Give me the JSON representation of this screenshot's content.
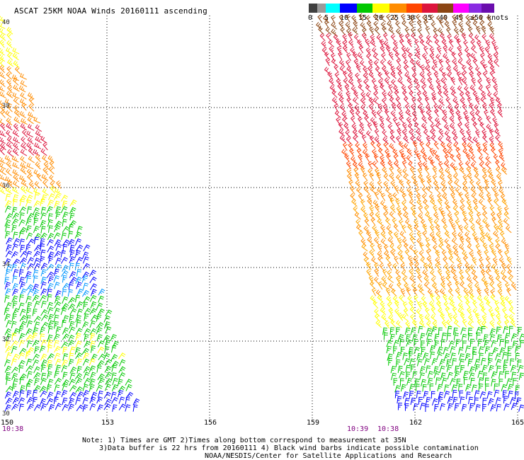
{
  "title": "ASCAT 25KM NOAA Winds 20160111 ascending",
  "legend": {
    "colors": [
      "#404040",
      "#9a9a9a",
      "#00ffff",
      "#0000ff",
      "#00c800",
      "#ffff00",
      "#ff8c00",
      "#ff4500",
      "#dc143c",
      "#8b4513",
      "#ff00ff",
      "#8a2be2",
      "#6a0dad"
    ],
    "labels": [
      "0",
      "5",
      "10",
      "15",
      "20",
      "25",
      "30",
      "35",
      "40",
      "45",
      "≥50 knots"
    ]
  },
  "map": {
    "lon_labels": [
      "150",
      "153",
      "156",
      "159",
      "162",
      "165"
    ],
    "lat_labels": [
      "40",
      "38",
      "36",
      "34",
      "32",
      "30"
    ],
    "times": [
      "10:38",
      "10:39",
      "10:38"
    ]
  },
  "notes": {
    "line1": "Note: 1) Times are GMT 2)Times along bottom correspond to measurement at 35N",
    "line2": "3)Data buffer is 22 hrs from 20160111 4) Black wind barbs indicate possible contamination",
    "line3": "NOAA/NESDIS/Center for Satellite Applications and Research"
  }
}
